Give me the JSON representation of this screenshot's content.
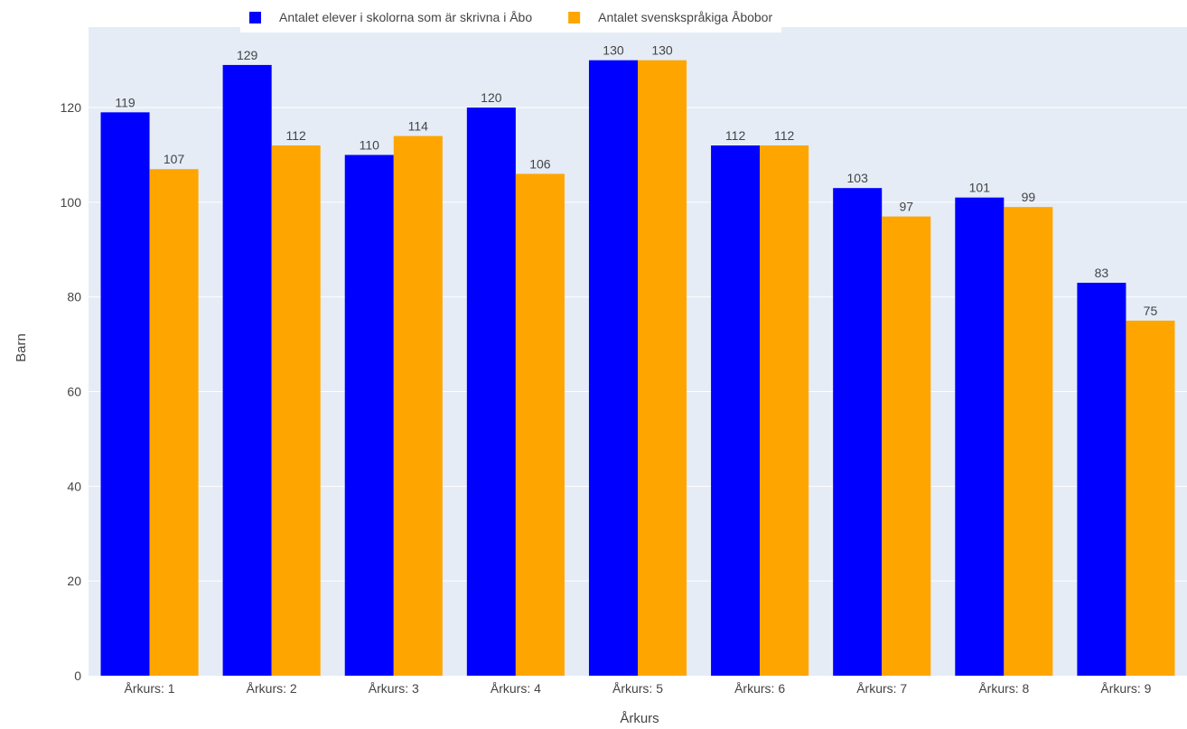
{
  "chart_data": {
    "type": "bar",
    "title": "",
    "xlabel": "Årkurs",
    "ylabel": "Barn",
    "categories": [
      "Årkurs: 1",
      "Årkurs: 2",
      "Årkurs: 3",
      "Årkurs: 4",
      "Årkurs: 5",
      "Årkurs: 6",
      "Årkurs: 7",
      "Årkurs: 8",
      "Årkurs: 9"
    ],
    "series": [
      {
        "name": "Antalet elever i skolorna som är skrivna i Åbo",
        "color": "#0000ff",
        "values": [
          119,
          129,
          110,
          120,
          130,
          112,
          103,
          101,
          83
        ]
      },
      {
        "name": "Antalet svenskspråkiga Åbobor",
        "color": "#ffa500",
        "values": [
          107,
          112,
          114,
          106,
          130,
          112,
          97,
          99,
          75
        ]
      }
    ],
    "ylim": [
      0,
      137
    ],
    "yticks": [
      0,
      20,
      40,
      60,
      80,
      100,
      120
    ],
    "grid": true,
    "legend_position": "top",
    "background_color": "#e5ecf6",
    "grid_color": "#ffffff"
  }
}
